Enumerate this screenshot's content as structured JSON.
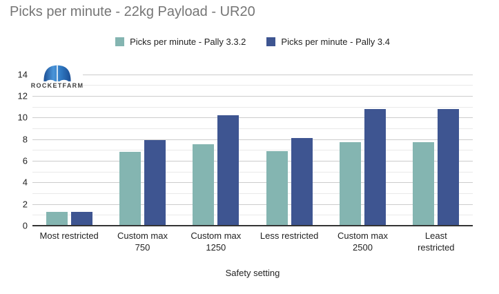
{
  "title": "Picks per minute - 22kg Payload - UR20",
  "logo": {
    "text": "ROCKETFARM"
  },
  "legend": [
    {
      "label": "Picks per minute - Pally 3.3.2",
      "color": "#84b5b1"
    },
    {
      "label": "Picks per minute - Pally 3.4",
      "color": "#3e5591"
    }
  ],
  "chart_data": {
    "type": "bar",
    "title": "Picks per minute - 22kg Payload - UR20",
    "categories": [
      "Most restricted",
      "Custom max 750",
      "Custom max 1250",
      "Less restricted",
      "Custom max 2500",
      "Least restricted"
    ],
    "category_display_lines": [
      [
        "Most restricted"
      ],
      [
        "Custom max",
        "750"
      ],
      [
        "Custom max",
        "1250"
      ],
      [
        "Less restricted"
      ],
      [
        "Custom max",
        "2500"
      ],
      [
        "Least",
        "restricted"
      ]
    ],
    "series": [
      {
        "name": "Picks per minute - Pally 3.3.2",
        "color": "#84b5b1",
        "values": [
          1.3,
          6.8,
          7.5,
          6.9,
          7.7,
          7.7
        ]
      },
      {
        "name": "Picks per minute - Pally 3.4",
        "color": "#3e5591",
        "values": [
          1.3,
          7.9,
          10.2,
          8.1,
          10.8,
          10.8
        ]
      }
    ],
    "xlabel": "Safety setting",
    "ylabel": "",
    "ylim": [
      0,
      14.8
    ],
    "yticks": [
      0,
      2,
      4,
      6,
      8,
      10,
      12,
      14
    ],
    "grid": true,
    "minor_grid_step": 1,
    "legend_position": "top",
    "colors": {
      "title_text": "#757575",
      "axis_text": "#222222",
      "major_gridline": "#cccccc",
      "minor_gridline": "#e9e9e9",
      "axis_line": "#333333",
      "background": "#ffffff"
    }
  }
}
